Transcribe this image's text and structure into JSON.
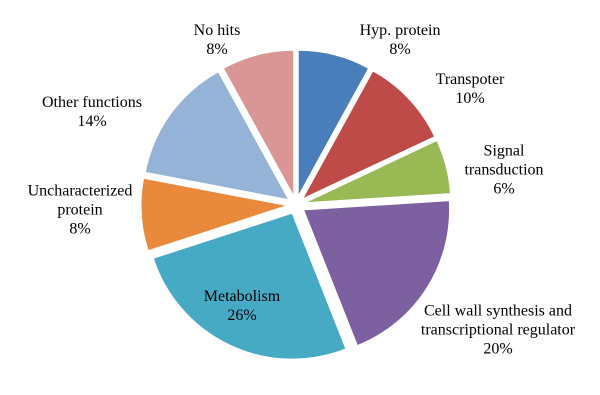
{
  "chart_data": {
    "type": "pie",
    "categories": [
      "Hyp. protein",
      "Transpoter",
      "Signal transduction",
      "Cell wall synthesis and transcriptional regulator",
      "Metabolism",
      "Uncharacterized protein",
      "Other functions",
      "No hits"
    ],
    "values": [
      8,
      10,
      6,
      20,
      26,
      8,
      14,
      8
    ],
    "value_labels": [
      "8%",
      "10%",
      "6%",
      "20%",
      "26%",
      "8%",
      "14%",
      "8%"
    ],
    "colors": [
      "#4a7ebb",
      "#be4b48",
      "#98b954",
      "#7d60a0",
      "#46aac5",
      "#e8893c",
      "#95b3d7",
      "#d99694"
    ]
  }
}
